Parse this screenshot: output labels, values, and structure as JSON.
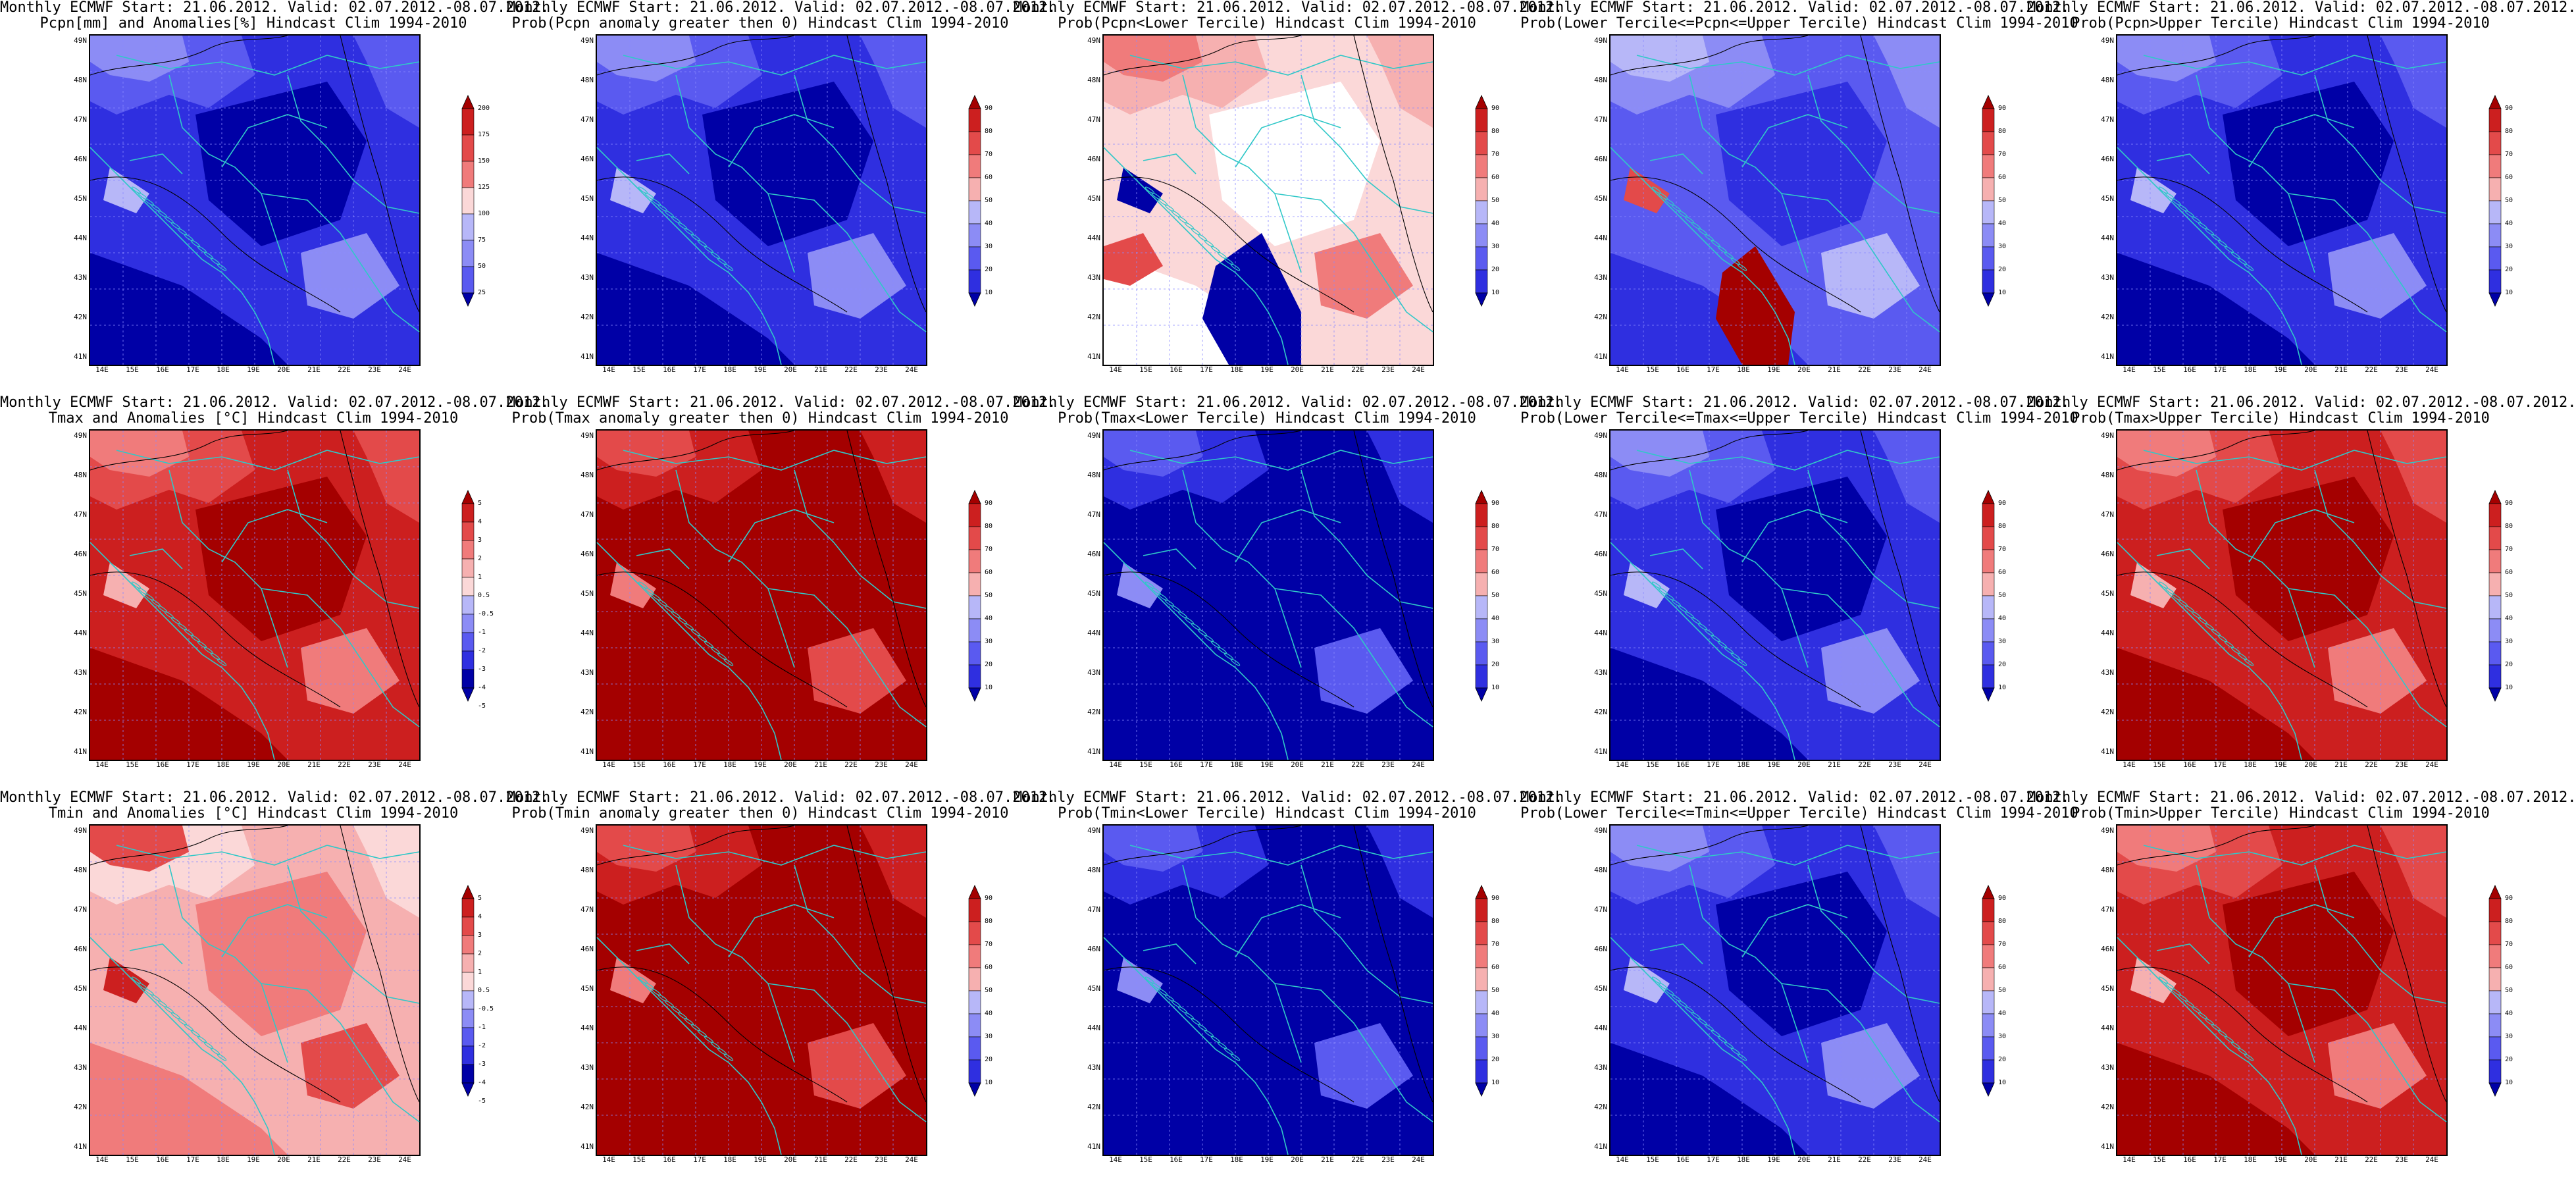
{
  "colors": {
    "blue_scale": [
      "#0000a6",
      "#2f2fe0",
      "#5a5af0",
      "#8c8cf5",
      "#b7b7f8",
      "#dcdcfb",
      "#ffffff"
    ],
    "red_scale": [
      "#ffffff",
      "#fbd8d8",
      "#f6b0b0",
      "#f07b7b",
      "#e34a4a",
      "#cc1f1f",
      "#a40000"
    ],
    "coast": "#30c8c8",
    "contour": "#000000",
    "gridline": "#8a8aff"
  },
  "map": {
    "lat_ticks": [
      "49N",
      "48N",
      "47N",
      "46N",
      "45N",
      "44N",
      "43N",
      "42N",
      "41N"
    ],
    "lon_ticks": [
      "14E",
      "15E",
      "16E",
      "17E",
      "18E",
      "19E",
      "20E",
      "21E",
      "22E",
      "23E",
      "24E"
    ]
  },
  "colorbars": {
    "precip": {
      "ticks": [
        "200",
        "175",
        "150",
        "125",
        "100",
        "75",
        "50",
        "25"
      ],
      "scheme": "diverging_pr"
    },
    "temp": {
      "ticks": [
        "5",
        "4",
        "3",
        "2",
        "1",
        "0.5",
        "-0.5",
        "-1",
        "-2",
        "-3",
        "-4",
        "-5"
      ],
      "scheme": "diverging_rb"
    },
    "prob": {
      "ticks": [
        "90",
        "80",
        "70",
        "60",
        "50",
        "40",
        "30",
        "20",
        "10"
      ],
      "scheme": "diverging_rb"
    }
  },
  "panels": [
    {
      "line1": "Monthly ECMWF Start: 21.06.2012. Valid: 02.07.2012.-08.07.2012.",
      "line2": "Pcpn[mm] and Anomalies[%] Hindcast Clim 1994-2010",
      "field": "blue_dominant",
      "cbar": "precip"
    },
    {
      "line1": "Monthly ECMWF Start: 21.06.2012. Valid: 02.07.2012.-08.07.2012.",
      "line2": "Prob(Pcpn anomaly greater then 0) Hindcast Clim 1994-2010",
      "field": "blue_dominant",
      "cbar": "prob"
    },
    {
      "line1": "Monthly ECMWF Start: 21.06.2012. Valid: 02.07.2012.-08.07.2012.",
      "line2": "Prob(Pcpn<Lower Tercile) Hindcast Clim 1994-2010",
      "field": "mixed_light",
      "cbar": "prob"
    },
    {
      "line1": "Monthly ECMWF Start: 21.06.2012. Valid: 02.07.2012.-08.07.2012.",
      "line2": "Prob(Lower Tercile<=Pcpn<=Upper Tercile) Hindcast Clim 1994-2010",
      "field": "blue_mixed",
      "cbar": "prob"
    },
    {
      "line1": "Monthly ECMWF Start: 21.06.2012. Valid: 02.07.2012.-08.07.2012.",
      "line2": "Prob(Pcpn>Upper Tercile) Hindcast Clim 1994-2010",
      "field": "blue_dominant",
      "cbar": "prob"
    },
    {
      "line1": "Monthly ECMWF Start: 21.06.2012. Valid: 02.07.2012.-08.07.2012.",
      "line2": "Tmax and Anomalies [°C] Hindcast Clim 1994-2010",
      "field": "red_dominant",
      "cbar": "temp"
    },
    {
      "line1": "Monthly ECMWF Start: 21.06.2012. Valid: 02.07.2012.-08.07.2012.",
      "line2": "Prob(Tmax anomaly greater then 0) Hindcast Clim 1994-2010",
      "field": "red_deep",
      "cbar": "prob"
    },
    {
      "line1": "Monthly ECMWF Start: 21.06.2012. Valid: 02.07.2012.-08.07.2012.",
      "line2": "Prob(Tmax<Lower Tercile) Hindcast Clim 1994-2010",
      "field": "blue_deep",
      "cbar": "prob"
    },
    {
      "line1": "Monthly ECMWF Start: 21.06.2012. Valid: 02.07.2012.-08.07.2012.",
      "line2": "Prob(Lower Tercile<=Tmax<=Upper Tercile) Hindcast Clim 1994-2010",
      "field": "blue_dominant",
      "cbar": "prob"
    },
    {
      "line1": "Monthly ECMWF Start: 21.06.2012. Valid: 02.07.2012.-08.07.2012.",
      "line2": "Prob(Tmax>Upper Tercile) Hindcast Clim 1994-2010",
      "field": "red_dominant",
      "cbar": "prob"
    },
    {
      "line1": "Monthly ECMWF Start: 21.06.2012. Valid: 02.07.2012.-08.07.2012.",
      "line2": "Tmin and Anomalies [°C] Hindcast Clim 1994-2010",
      "field": "red_light",
      "cbar": "temp"
    },
    {
      "line1": "Monthly ECMWF Start: 21.06.2012. Valid: 02.07.2012.-08.07.2012.",
      "line2": "Prob(Tmin anomaly greater then 0) Hindcast Clim 1994-2010",
      "field": "red_deep",
      "cbar": "prob"
    },
    {
      "line1": "Monthly ECMWF Start: 21.06.2012. Valid: 02.07.2012.-08.07.2012.",
      "line2": "Prob(Tmin<Lower Tercile) Hindcast Clim 1994-2010",
      "field": "blue_deep",
      "cbar": "prob"
    },
    {
      "line1": "Monthly ECMWF Start: 21.06.2012. Valid: 02.07.2012.-08.07.2012.",
      "line2": "Prob(Lower Tercile<=Tmin<=Upper Tercile) Hindcast Clim 1994-2010",
      "field": "blue_dominant",
      "cbar": "prob"
    },
    {
      "line1": "Monthly ECMWF Start: 21.06.2012. Valid: 02.07.2012.-08.07.2012.",
      "line2": "Prob(Tmin>Upper Tercile) Hindcast Clim 1994-2010",
      "field": "red_dominant",
      "cbar": "prob"
    }
  ]
}
